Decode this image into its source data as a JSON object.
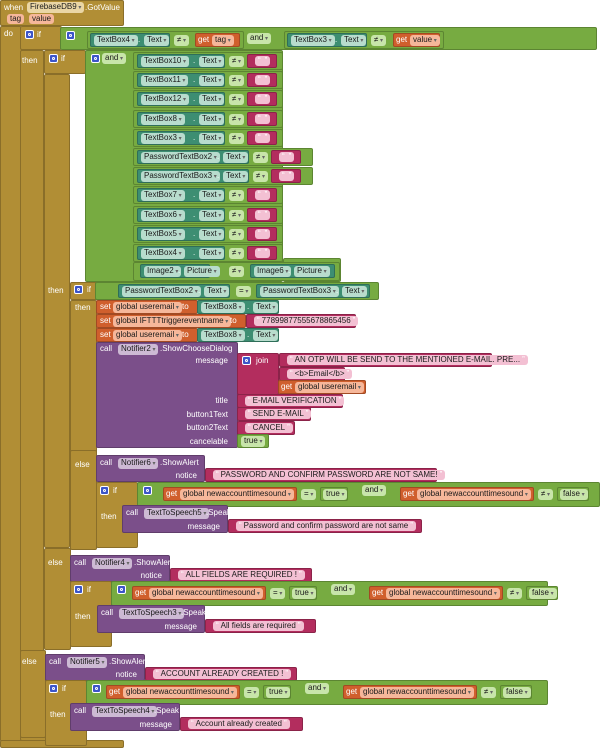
{
  "colors": {
    "control": "#b18e35",
    "logic": "#77ab41",
    "component": "#3d8e72",
    "variable": "#d05f2d",
    "text": "#b32d5e",
    "procedure": "#7b4f8a"
  },
  "event": {
    "when": "when",
    "component": "FirebaseDB9",
    "method": ".GotValue",
    "params": [
      "tag",
      "value"
    ],
    "do": "do"
  },
  "kw": {
    "if": "if",
    "then": "then",
    "else": "else",
    "and": "and",
    "get": "get",
    "set": "set",
    "to": "to",
    "call": "call",
    "join": "join",
    "dot": ".",
    "neq": "≠",
    "eq": "=",
    "true": "true",
    "false": "false"
  },
  "outer_condition": {
    "left_component": "TextBox4",
    "left_prop": "Text",
    "left_var": "tag",
    "right_component": "TextBox3",
    "right_prop": "Text",
    "right_var": "value"
  },
  "required_fields": {
    "components": [
      "TextBox10",
      "TextBox11",
      "TextBox12",
      "TextBox8",
      "TextBox3",
      "PasswordTextBox2",
      "PasswordTextBox3",
      "TextBox7",
      "TextBox6",
      "TextBox5",
      "TextBox4"
    ],
    "prop": "Text",
    "empty": "",
    "image_left": "Image2",
    "image_right": "Image6",
    "image_prop": "Picture"
  },
  "password_match": {
    "left": "PasswordTextBox2",
    "right": "PasswordTextBox3",
    "prop": "Text"
  },
  "setters": [
    {
      "var": "global useremail",
      "component": "TextBox8",
      "prop": "Text"
    },
    {
      "var": "global IFTTTtriggereventname",
      "value": "77899877555678865456"
    },
    {
      "var": "global useremail",
      "component": "TextBox8",
      "prop": "Text"
    }
  ],
  "choose_dialog": {
    "component": "Notifier2",
    "method": ".ShowChooseDialog",
    "labels": {
      "message": "message",
      "title": "title",
      "button1": "button1Text",
      "button2": "button2Text",
      "cancelable": "cancelable"
    },
    "message_parts": [
      "AN OTP WILL BE SEND TO THE MENTIONED E-MAIL. PRE...",
      "<b>Email</b>"
    ],
    "message_var": "global useremail",
    "title": "E-MAIL VERIFICATION",
    "button1": "SEND E-MAIL",
    "button2": "CANCEL",
    "cancelable": "true"
  },
  "sound_var": "global newaccounttimesound",
  "alerts": [
    {
      "component": "Notifier6",
      "method": ".ShowAlert",
      "arg": "notice",
      "notice": "PASSWORD AND CONFIRM PASSWORD ARE NOT SAME!",
      "tts": "TextToSpeech5",
      "tts_method": ".Speak",
      "tts_arg": "message",
      "speech": "Password and confirm password are not same"
    },
    {
      "component": "Notifier4",
      "method": ".ShowAlert",
      "arg": "notice",
      "notice": "ALL FIELDS ARE REQUIRED !",
      "tts": "TextToSpeech3",
      "tts_method": ".Speak",
      "tts_arg": "message",
      "speech": "All fields are required"
    },
    {
      "component": "Notifier5",
      "method": ".ShowAlert",
      "arg": "notice",
      "notice": "ACCOUNT ALREADY CREATED !",
      "tts": "TextToSpeech4",
      "tts_method": ".Speak",
      "tts_arg": "message",
      "speech": "Account already created"
    }
  ]
}
